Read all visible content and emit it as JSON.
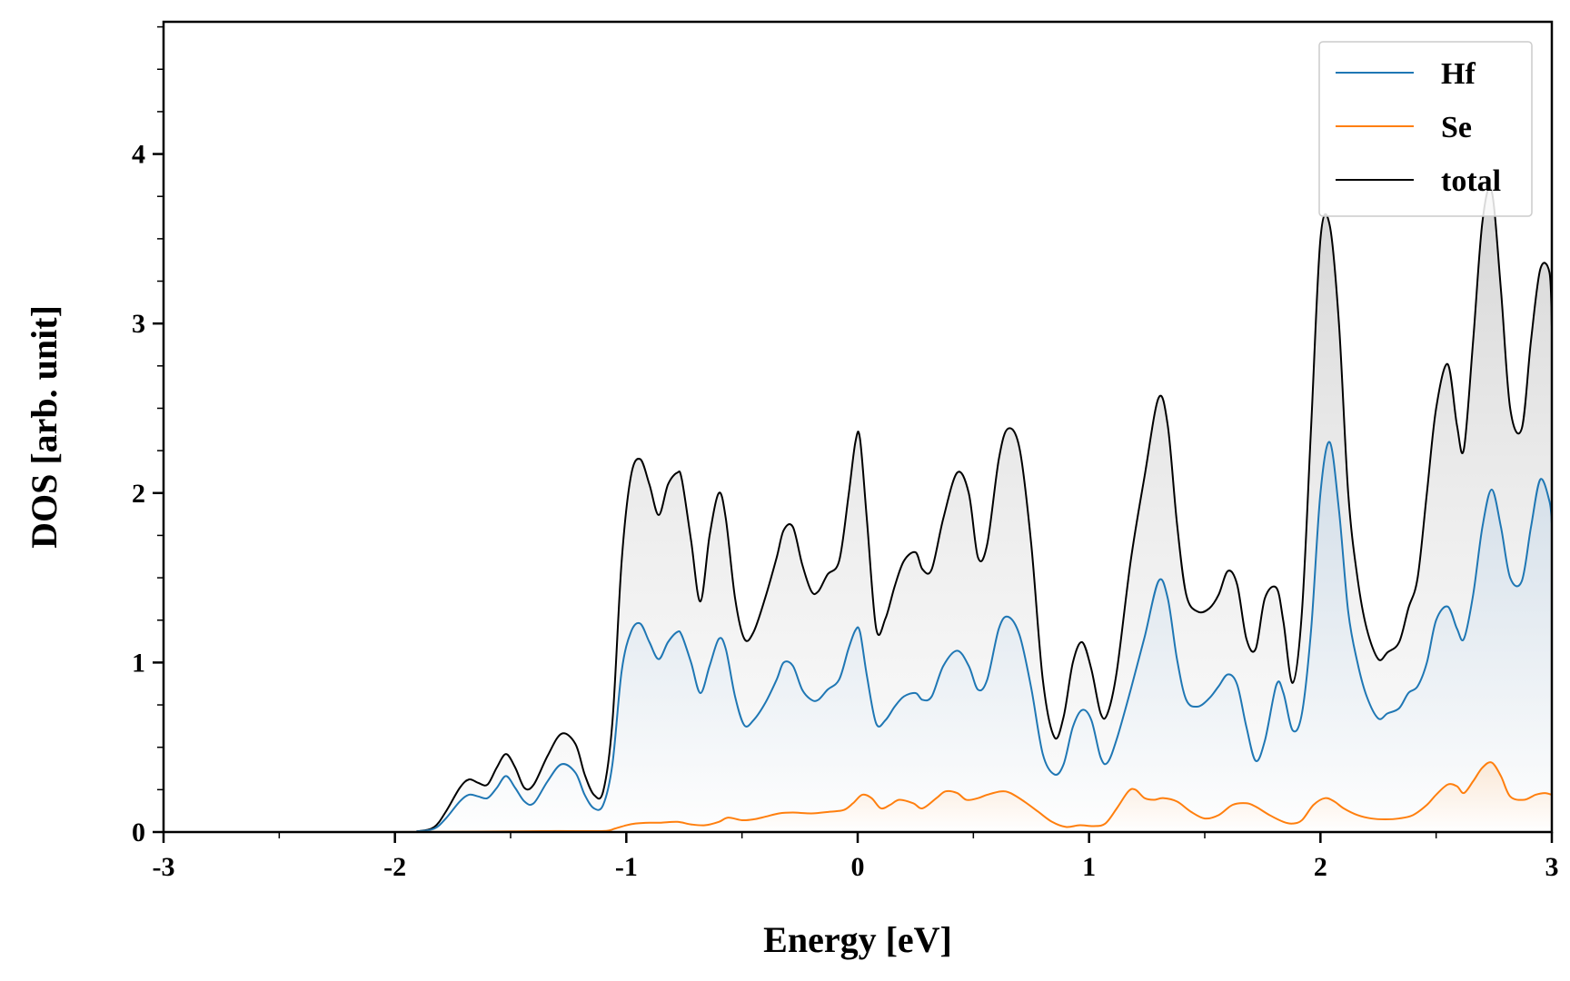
{
  "chart_data": {
    "type": "area",
    "title": "",
    "xlabel": "Energy [eV]",
    "ylabel": "DOS [arb. unit]",
    "xlim": [
      -3,
      3
    ],
    "ylim": [
      0,
      4.78
    ],
    "x_ticks": [
      -3,
      -2,
      -1,
      0,
      1,
      2,
      3
    ],
    "x_tick_labels": [
      "-3",
      "-2",
      "-1",
      "0",
      "1",
      "2",
      "3"
    ],
    "y_ticks": [
      0,
      1,
      2,
      3,
      4
    ],
    "y_tick_labels": [
      "0",
      "1",
      "2",
      "3",
      "4"
    ],
    "grid": false,
    "legend_position": "top-right",
    "series": [
      {
        "name": "Hf",
        "color": "#1f77b4",
        "x": [
          -3.0,
          -2.0,
          -1.9,
          -1.83,
          -1.78,
          -1.72,
          -1.68,
          -1.64,
          -1.6,
          -1.56,
          -1.52,
          -1.48,
          -1.44,
          -1.4,
          -1.34,
          -1.28,
          -1.22,
          -1.18,
          -1.14,
          -1.1,
          -1.06,
          -1.02,
          -0.98,
          -0.94,
          -0.9,
          -0.86,
          -0.82,
          -0.78,
          -0.76,
          -0.72,
          -0.68,
          -0.64,
          -0.6,
          -0.57,
          -0.53,
          -0.49,
          -0.45,
          -0.4,
          -0.35,
          -0.32,
          -0.28,
          -0.24,
          -0.2,
          -0.17,
          -0.13,
          -0.08,
          -0.04,
          -0.01,
          0.01,
          0.04,
          0.08,
          0.12,
          0.16,
          0.2,
          0.25,
          0.28,
          0.32,
          0.37,
          0.43,
          0.48,
          0.52,
          0.56,
          0.61,
          0.65,
          0.7,
          0.75,
          0.8,
          0.85,
          0.89,
          0.93,
          0.97,
          1.01,
          1.05,
          1.08,
          1.12,
          1.18,
          1.24,
          1.3,
          1.34,
          1.38,
          1.42,
          1.47,
          1.52,
          1.56,
          1.6,
          1.64,
          1.68,
          1.72,
          1.76,
          1.81,
          1.84,
          1.88,
          1.92,
          1.96,
          2.0,
          2.04,
          2.08,
          2.12,
          2.16,
          2.2,
          2.25,
          2.29,
          2.34,
          2.38,
          2.42,
          2.46,
          2.5,
          2.55,
          2.59,
          2.62,
          2.66,
          2.7,
          2.74,
          2.78,
          2.82,
          2.87,
          2.91,
          2.95,
          2.99,
          3.0
        ],
        "values": [
          0.0,
          0.0,
          0.005,
          0.02,
          0.08,
          0.18,
          0.22,
          0.21,
          0.2,
          0.26,
          0.33,
          0.26,
          0.18,
          0.17,
          0.3,
          0.4,
          0.35,
          0.22,
          0.14,
          0.16,
          0.4,
          0.95,
          1.18,
          1.23,
          1.12,
          1.02,
          1.12,
          1.18,
          1.16,
          1.0,
          0.82,
          0.98,
          1.14,
          1.08,
          0.8,
          0.63,
          0.66,
          0.76,
          0.9,
          1.0,
          0.98,
          0.84,
          0.78,
          0.78,
          0.84,
          0.9,
          1.08,
          1.19,
          1.18,
          0.92,
          0.64,
          0.66,
          0.74,
          0.8,
          0.82,
          0.78,
          0.8,
          0.98,
          1.07,
          0.98,
          0.84,
          0.9,
          1.2,
          1.27,
          1.16,
          0.85,
          0.46,
          0.34,
          0.4,
          0.62,
          0.72,
          0.66,
          0.44,
          0.41,
          0.55,
          0.84,
          1.15,
          1.48,
          1.38,
          1.02,
          0.78,
          0.74,
          0.79,
          0.86,
          0.93,
          0.87,
          0.62,
          0.42,
          0.54,
          0.87,
          0.82,
          0.6,
          0.7,
          1.2,
          2.0,
          2.3,
          1.9,
          1.3,
          1.0,
          0.8,
          0.67,
          0.7,
          0.73,
          0.82,
          0.86,
          1.0,
          1.25,
          1.33,
          1.2,
          1.14,
          1.4,
          1.8,
          2.02,
          1.8,
          1.5,
          1.48,
          1.8,
          2.08,
          1.95,
          1.82
        ]
      },
      {
        "name": "Se",
        "color": "#ff7f0e",
        "x": [
          -3.0,
          -2.0,
          -1.7,
          -1.5,
          -1.3,
          -1.1,
          -1.05,
          -1.0,
          -0.96,
          -0.9,
          -0.85,
          -0.78,
          -0.72,
          -0.66,
          -0.6,
          -0.56,
          -0.5,
          -0.45,
          -0.4,
          -0.34,
          -0.28,
          -0.2,
          -0.12,
          -0.06,
          -0.02,
          0.02,
          0.06,
          0.1,
          0.14,
          0.18,
          0.24,
          0.28,
          0.34,
          0.38,
          0.43,
          0.47,
          0.52,
          0.56,
          0.62,
          0.66,
          0.72,
          0.78,
          0.84,
          0.9,
          0.96,
          1.02,
          1.07,
          1.12,
          1.17,
          1.2,
          1.24,
          1.28,
          1.32,
          1.38,
          1.44,
          1.5,
          1.56,
          1.62,
          1.68,
          1.72,
          1.78,
          1.84,
          1.88,
          1.92,
          1.97,
          2.02,
          2.06,
          2.1,
          2.16,
          2.22,
          2.28,
          2.34,
          2.4,
          2.46,
          2.5,
          2.55,
          2.59,
          2.62,
          2.66,
          2.7,
          2.74,
          2.78,
          2.82,
          2.88,
          2.93,
          2.97,
          3.0
        ],
        "values": [
          0.0,
          0.0,
          0.002,
          0.004,
          0.006,
          0.006,
          0.02,
          0.04,
          0.05,
          0.055,
          0.055,
          0.06,
          0.045,
          0.04,
          0.06,
          0.085,
          0.07,
          0.075,
          0.09,
          0.11,
          0.115,
          0.11,
          0.12,
          0.13,
          0.17,
          0.22,
          0.2,
          0.14,
          0.16,
          0.19,
          0.17,
          0.14,
          0.2,
          0.24,
          0.23,
          0.19,
          0.2,
          0.22,
          0.24,
          0.23,
          0.18,
          0.12,
          0.06,
          0.03,
          0.04,
          0.035,
          0.05,
          0.14,
          0.24,
          0.25,
          0.2,
          0.19,
          0.2,
          0.18,
          0.12,
          0.08,
          0.1,
          0.16,
          0.17,
          0.15,
          0.1,
          0.06,
          0.05,
          0.07,
          0.16,
          0.2,
          0.18,
          0.14,
          0.1,
          0.08,
          0.075,
          0.08,
          0.1,
          0.16,
          0.22,
          0.28,
          0.27,
          0.23,
          0.3,
          0.38,
          0.41,
          0.33,
          0.21,
          0.19,
          0.22,
          0.23,
          0.22
        ]
      },
      {
        "name": "total",
        "color": "#000000",
        "x": [
          -3.0,
          -2.0,
          -1.9,
          -1.83,
          -1.78,
          -1.72,
          -1.68,
          -1.64,
          -1.6,
          -1.56,
          -1.52,
          -1.48,
          -1.44,
          -1.4,
          -1.34,
          -1.28,
          -1.22,
          -1.18,
          -1.14,
          -1.1,
          -1.06,
          -1.02,
          -0.98,
          -0.94,
          -0.9,
          -0.86,
          -0.82,
          -0.78,
          -0.76,
          -0.72,
          -0.68,
          -0.64,
          -0.6,
          -0.57,
          -0.53,
          -0.49,
          -0.45,
          -0.4,
          -0.35,
          -0.32,
          -0.28,
          -0.24,
          -0.2,
          -0.17,
          -0.13,
          -0.08,
          -0.04,
          -0.01,
          0.01,
          0.04,
          0.08,
          0.12,
          0.16,
          0.2,
          0.25,
          0.28,
          0.32,
          0.37,
          0.43,
          0.48,
          0.52,
          0.56,
          0.61,
          0.65,
          0.7,
          0.75,
          0.8,
          0.85,
          0.89,
          0.93,
          0.97,
          1.01,
          1.05,
          1.08,
          1.12,
          1.18,
          1.24,
          1.3,
          1.34,
          1.38,
          1.42,
          1.47,
          1.52,
          1.56,
          1.6,
          1.64,
          1.68,
          1.72,
          1.76,
          1.81,
          1.84,
          1.88,
          1.92,
          1.96,
          2.0,
          2.04,
          2.08,
          2.12,
          2.16,
          2.2,
          2.25,
          2.29,
          2.34,
          2.38,
          2.42,
          2.46,
          2.5,
          2.55,
          2.59,
          2.62,
          2.66,
          2.7,
          2.74,
          2.78,
          2.82,
          2.87,
          2.91,
          2.95,
          2.99,
          3.0
        ],
        "values": [
          0.0,
          0.0,
          0.005,
          0.03,
          0.12,
          0.26,
          0.31,
          0.29,
          0.28,
          0.38,
          0.46,
          0.38,
          0.26,
          0.28,
          0.45,
          0.58,
          0.52,
          0.34,
          0.22,
          0.24,
          0.65,
          1.6,
          2.1,
          2.2,
          2.05,
          1.87,
          2.05,
          2.12,
          2.08,
          1.72,
          1.36,
          1.75,
          2.0,
          1.85,
          1.38,
          1.14,
          1.18,
          1.38,
          1.62,
          1.78,
          1.8,
          1.58,
          1.42,
          1.42,
          1.52,
          1.6,
          1.98,
          2.3,
          2.32,
          1.84,
          1.2,
          1.26,
          1.45,
          1.6,
          1.65,
          1.55,
          1.55,
          1.85,
          2.12,
          2.0,
          1.62,
          1.7,
          2.2,
          2.38,
          2.26,
          1.7,
          0.9,
          0.56,
          0.68,
          1.0,
          1.12,
          0.96,
          0.7,
          0.7,
          0.95,
          1.6,
          2.1,
          2.56,
          2.4,
          1.82,
          1.4,
          1.3,
          1.32,
          1.4,
          1.54,
          1.46,
          1.14,
          1.08,
          1.38,
          1.44,
          1.24,
          0.88,
          1.3,
          2.4,
          3.5,
          3.58,
          3.0,
          2.0,
          1.5,
          1.2,
          1.02,
          1.06,
          1.12,
          1.32,
          1.5,
          2.0,
          2.5,
          2.76,
          2.4,
          2.26,
          2.9,
          3.6,
          3.78,
          3.2,
          2.5,
          2.38,
          2.9,
          3.32,
          3.3,
          2.98
        ]
      }
    ]
  }
}
